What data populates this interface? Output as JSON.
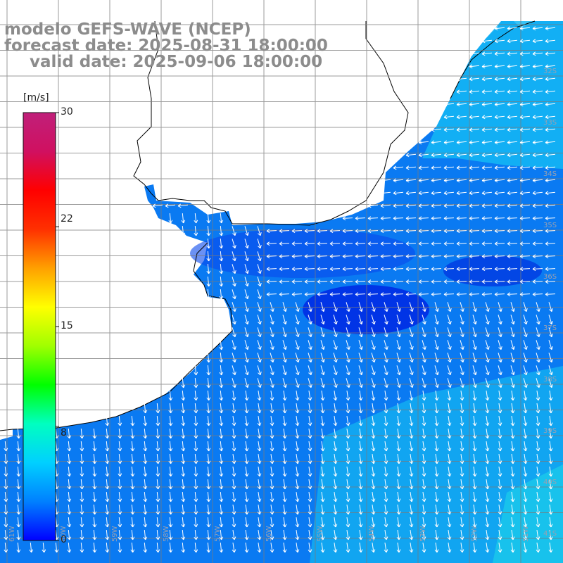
{
  "title": {
    "model": "modelo GEFS-WAVE (NCEP)",
    "forecast": "forecast date: 2025-08-31 18:00:00",
    "valid": "valid date: 2025-09-06 18:00:00"
  },
  "colorbar": {
    "unit": "[m/s]",
    "ticks": [
      "30",
      "22",
      "15",
      "8",
      "0"
    ],
    "tick_values": [
      30,
      22,
      15,
      8,
      0
    ],
    "min": 0,
    "max": 30,
    "colors": [
      "#0000ff",
      "#0080ff",
      "#00d0ff",
      "#00ffc0",
      "#00ff00",
      "#a0ff00",
      "#ffff00",
      "#ffa000",
      "#ff3000",
      "#ff0000",
      "#d01060",
      "#c0207a"
    ]
  },
  "map": {
    "parameter": "wind speed and direction",
    "ocean_colors": {
      "deep": "#0020e8",
      "mid": "#0a78f0",
      "light": "#18d0f0"
    },
    "land_color": "#ffffff",
    "coast_color": "#000000",
    "grid_color": "#7a7a7a",
    "arrow_color": "#ffffff",
    "lat_labels": [
      "32S",
      "33S",
      "34S",
      "35S",
      "36S",
      "37S",
      "38S",
      "39S",
      "40S",
      "41S"
    ],
    "lon_labels": [
      "61W",
      "60W",
      "59W",
      "58W",
      "57W",
      "56W",
      "55W",
      "54W",
      "53W",
      "52W",
      "51W"
    ]
  }
}
